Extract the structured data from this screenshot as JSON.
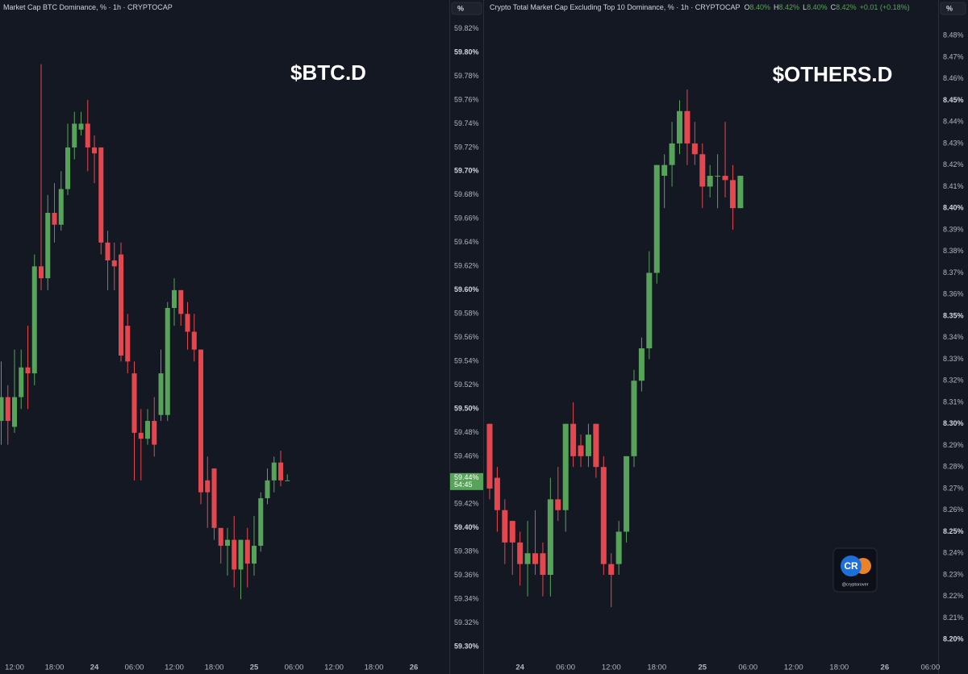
{
  "chart_data": [
    {
      "type": "candlestick",
      "title": "Market Cap BTC Dominance, % · 1h · CRYPTOCAP",
      "annotation": "$BTC.D",
      "unit": "%",
      "up_color": "#58a35a",
      "down_color": "#e5474f",
      "categories": [
        null,
        null,
        "12:00",
        null,
        null,
        null,
        null,
        null,
        "18:00",
        null,
        null,
        null,
        null,
        null,
        "24",
        null,
        null,
        null,
        null,
        null,
        "06:00",
        null,
        null,
        null,
        null,
        null,
        "12:00",
        null,
        null,
        null,
        null,
        null,
        "18:00",
        null,
        null,
        null,
        null,
        null,
        "25",
        null,
        null,
        null,
        null,
        null,
        "06:00",
        null,
        null,
        null,
        null,
        null,
        "12:00",
        null,
        null,
        null,
        null,
        null,
        "18:00",
        null,
        null,
        null,
        null,
        null,
        "26",
        null,
        null,
        null
      ],
      "open": [
        59.49,
        59.51,
        59.485,
        59.51,
        59.535,
        59.53,
        59.62,
        59.61,
        59.665,
        59.655,
        59.685,
        59.72,
        59.735,
        59.74,
        59.72,
        59.72,
        59.64,
        59.625,
        59.63,
        59.57,
        59.53,
        59.48,
        59.475,
        59.49,
        59.495,
        59.495,
        59.585,
        59.6,
        59.58,
        59.565,
        59.55,
        59.44,
        59.45,
        59.4,
        59.385,
        59.39,
        59.365,
        59.39,
        59.37,
        59.385,
        59.425,
        59.44,
        59.455,
        59.44,
        null,
        null,
        null,
        null,
        null,
        null,
        null,
        null,
        null,
        null,
        null,
        null,
        null,
        null,
        null,
        null,
        null,
        null,
        null,
        null,
        null,
        null
      ],
      "high": [
        59.54,
        59.52,
        59.55,
        59.55,
        59.57,
        59.63,
        59.79,
        59.68,
        59.69,
        59.7,
        59.74,
        59.75,
        59.75,
        59.76,
        59.73,
        59.72,
        59.65,
        59.64,
        59.64,
        59.58,
        59.54,
        59.5,
        59.5,
        59.51,
        59.55,
        59.59,
        59.61,
        59.6,
        59.59,
        59.58,
        59.55,
        59.46,
        59.45,
        59.4,
        59.4,
        59.41,
        59.39,
        59.4,
        59.41,
        59.43,
        59.45,
        59.46,
        59.465,
        59.445,
        null,
        null,
        null,
        null,
        null,
        null,
        null,
        null,
        null,
        null,
        null,
        null,
        null,
        null,
        null,
        null,
        null,
        null,
        null,
        null,
        null,
        null
      ],
      "low": [
        59.47,
        59.47,
        59.48,
        59.5,
        59.5,
        59.52,
        59.6,
        59.6,
        59.64,
        59.65,
        59.68,
        59.71,
        59.73,
        59.7,
        59.69,
        59.63,
        59.6,
        59.6,
        59.54,
        59.53,
        59.44,
        59.44,
        59.47,
        59.46,
        59.49,
        59.49,
        59.57,
        59.57,
        59.55,
        59.54,
        59.42,
        59.4,
        59.39,
        59.37,
        59.36,
        59.35,
        59.34,
        59.35,
        59.36,
        59.38,
        59.42,
        59.43,
        59.435,
        59.44,
        null,
        null,
        null,
        null,
        null,
        null,
        null,
        null,
        null,
        null,
        null,
        null,
        null,
        null,
        null,
        null,
        null,
        null,
        null,
        null,
        null,
        null
      ],
      "close": [
        59.51,
        59.49,
        59.51,
        59.535,
        59.53,
        59.62,
        59.61,
        59.665,
        59.655,
        59.685,
        59.72,
        59.74,
        59.74,
        59.72,
        59.715,
        59.64,
        59.625,
        59.62,
        59.545,
        59.54,
        59.48,
        59.475,
        59.49,
        59.47,
        59.53,
        59.585,
        59.6,
        59.58,
        59.565,
        59.55,
        59.43,
        59.43,
        59.4,
        59.385,
        59.39,
        59.365,
        59.39,
        59.37,
        59.385,
        59.425,
        59.44,
        59.455,
        59.44,
        59.44,
        null,
        null,
        null,
        null,
        null,
        null,
        null,
        null,
        null,
        null,
        null,
        null,
        null,
        null,
        null,
        null,
        null,
        null,
        null,
        null,
        null,
        null
      ],
      "ylim": [
        59.288,
        59.844
      ],
      "yticks": [
        {
          "value": 59.3,
          "label": "59.30%"
        },
        {
          "value": 59.32,
          "label": "59.32%"
        },
        {
          "value": 59.34,
          "label": "59.34%"
        },
        {
          "value": 59.36,
          "label": "59.36%"
        },
        {
          "value": 59.38,
          "label": "59.38%"
        },
        {
          "value": 59.4,
          "label": "59.40%"
        },
        {
          "value": 59.42,
          "label": "59.42%"
        },
        {
          "value": 59.44,
          "label": "59.44%"
        },
        {
          "value": 59.46,
          "label": "59.46%"
        },
        {
          "value": 59.48,
          "label": "59.48%"
        },
        {
          "value": 59.5,
          "label": "59.50%"
        },
        {
          "value": 59.52,
          "label": "59.52%"
        },
        {
          "value": 59.54,
          "label": "59.54%"
        },
        {
          "value": 59.56,
          "label": "59.56%"
        },
        {
          "value": 59.58,
          "label": "59.58%"
        },
        {
          "value": 59.6,
          "label": "59.60%"
        },
        {
          "value": 59.62,
          "label": "59.62%"
        },
        {
          "value": 59.64,
          "label": "59.64%"
        },
        {
          "value": 59.66,
          "label": "59.66%"
        },
        {
          "value": 59.68,
          "label": "59.68%"
        },
        {
          "value": 59.7,
          "label": "59.70%"
        },
        {
          "value": 59.72,
          "label": "59.72%"
        },
        {
          "value": 59.74,
          "label": "59.74%"
        },
        {
          "value": 59.76,
          "label": "59.76%"
        },
        {
          "value": 59.78,
          "label": "59.78%"
        },
        {
          "value": 59.8,
          "label": "59.80%"
        },
        {
          "value": 59.82,
          "label": "59.82%"
        }
      ],
      "price_label": "59.44%",
      "countdown": "54:45"
    },
    {
      "type": "candlestick",
      "title": "Crypto Total Market Cap Excluding Top 10 Dominance, % · 1h · CRYPTOCAP",
      "annotation": "$OTHERS.D",
      "unit": "%",
      "up_color": "#58a35a",
      "down_color": "#e5474f",
      "legend": [
        {
          "key": "O",
          "value": "8.40%"
        },
        {
          "key": "H",
          "value": "8.42%"
        },
        {
          "key": "L",
          "value": "8.40%"
        },
        {
          "key": "C",
          "value": "8.42%"
        }
      ],
      "change": "+0.01 (+0.18%)",
      "categories": [
        null,
        null,
        null,
        null,
        "24",
        null,
        null,
        null,
        null,
        null,
        "06:00",
        null,
        null,
        null,
        null,
        null,
        "12:00",
        null,
        null,
        null,
        null,
        null,
        "18:00",
        null,
        null,
        null,
        null,
        null,
        "25",
        null,
        null,
        null,
        null,
        null,
        "06:00",
        null,
        null,
        null,
        null,
        null,
        "12:00",
        null,
        null,
        null,
        null,
        null,
        "18:00",
        null,
        null,
        null,
        null,
        null,
        "26",
        null,
        null,
        null,
        null,
        null,
        "06:00",
        null
      ],
      "open": [
        8.3,
        8.275,
        8.26,
        8.255,
        8.245,
        8.235,
        8.24,
        8.24,
        8.23,
        8.265,
        8.26,
        8.3,
        8.29,
        8.285,
        8.3,
        8.28,
        8.235,
        8.235,
        8.25,
        8.285,
        8.32,
        8.335,
        8.37,
        8.415,
        8.42,
        8.43,
        8.445,
        8.43,
        8.425,
        8.41,
        8.415,
        8.415,
        8.413,
        8.4,
        null,
        null,
        null,
        null,
        null,
        null,
        null,
        null,
        null,
        null,
        null,
        null,
        null,
        null,
        null,
        null,
        null,
        null,
        null,
        null,
        null,
        null,
        null,
        null,
        null,
        null
      ],
      "high": [
        8.3,
        8.28,
        8.265,
        8.255,
        8.25,
        8.255,
        8.26,
        8.245,
        8.275,
        8.28,
        8.3,
        8.31,
        8.295,
        8.3,
        8.3,
        8.285,
        8.24,
        8.255,
        8.285,
        8.325,
        8.34,
        8.38,
        8.42,
        8.425,
        8.44,
        8.45,
        8.455,
        8.44,
        8.43,
        8.42,
        8.425,
        8.44,
        8.42,
        8.415,
        null,
        null,
        null,
        null,
        null,
        null,
        null,
        null,
        null,
        null,
        null,
        null,
        null,
        null,
        null,
        null,
        null,
        null,
        null,
        null,
        null,
        null,
        null,
        null,
        null,
        null
      ],
      "low": [
        8.265,
        8.25,
        8.235,
        8.23,
        8.225,
        8.22,
        8.23,
        8.22,
        8.22,
        8.255,
        8.25,
        8.28,
        8.28,
        8.28,
        8.275,
        8.23,
        8.215,
        8.23,
        8.245,
        8.28,
        8.315,
        8.33,
        8.365,
        8.4,
        8.41,
        8.425,
        8.42,
        8.42,
        8.4,
        8.405,
        8.4,
        8.405,
        8.39,
        8.4,
        null,
        null,
        null,
        null,
        null,
        null,
        null,
        null,
        null,
        null,
        null,
        null,
        null,
        null,
        null,
        null,
        null,
        null,
        null,
        null,
        null,
        null,
        null,
        null,
        null,
        null
      ],
      "close": [
        8.27,
        8.26,
        8.245,
        8.245,
        8.235,
        8.24,
        8.235,
        8.23,
        8.265,
        8.26,
        8.3,
        8.285,
        8.285,
        8.295,
        8.28,
        8.235,
        8.23,
        8.25,
        8.285,
        8.32,
        8.335,
        8.37,
        8.42,
        8.42,
        8.43,
        8.445,
        8.43,
        8.425,
        8.41,
        8.415,
        8.415,
        8.413,
        8.4,
        8.415,
        null,
        null,
        null,
        null,
        null,
        null,
        null,
        null,
        null,
        null,
        null,
        null,
        null,
        null,
        null,
        null,
        null,
        null,
        null,
        null,
        null,
        null,
        null,
        null,
        null,
        null
      ],
      "ylim": [
        8.19,
        8.4965
      ],
      "yticks": [
        {
          "value": 8.2,
          "label": "8.20%"
        },
        {
          "value": 8.21,
          "label": "8.21%"
        },
        {
          "value": 8.22,
          "label": "8.22%"
        },
        {
          "value": 8.23,
          "label": "8.23%"
        },
        {
          "value": 8.24,
          "label": "8.24%"
        },
        {
          "value": 8.25,
          "label": "8.25%"
        },
        {
          "value": 8.26,
          "label": "8.26%"
        },
        {
          "value": 8.27,
          "label": "8.27%"
        },
        {
          "value": 8.28,
          "label": "8.28%"
        },
        {
          "value": 8.29,
          "label": "8.29%"
        },
        {
          "value": 8.3,
          "label": "8.30%"
        },
        {
          "value": 8.31,
          "label": "8.31%"
        },
        {
          "value": 8.32,
          "label": "8.32%"
        },
        {
          "value": 8.33,
          "label": "8.33%"
        },
        {
          "value": 8.34,
          "label": "8.34%"
        },
        {
          "value": 8.35,
          "label": "8.35%"
        },
        {
          "value": 8.36,
          "label": "8.36%"
        },
        {
          "value": 8.37,
          "label": "8.37%"
        },
        {
          "value": 8.38,
          "label": "8.38%"
        },
        {
          "value": 8.39,
          "label": "8.39%"
        },
        {
          "value": 8.4,
          "label": "8.40%"
        },
        {
          "value": 8.41,
          "label": "8.41%"
        },
        {
          "value": 8.42,
          "label": "8.42%"
        },
        {
          "value": 8.43,
          "label": "8.43%"
        },
        {
          "value": 8.44,
          "label": "8.44%"
        },
        {
          "value": 8.45,
          "label": "8.45%"
        },
        {
          "value": 8.46,
          "label": "8.46%"
        },
        {
          "value": 8.47,
          "label": "8.47%"
        },
        {
          "value": 8.48,
          "label": "8.48%"
        }
      ]
    }
  ],
  "logo": {
    "text": "CR",
    "handle": "@cryptorover"
  }
}
